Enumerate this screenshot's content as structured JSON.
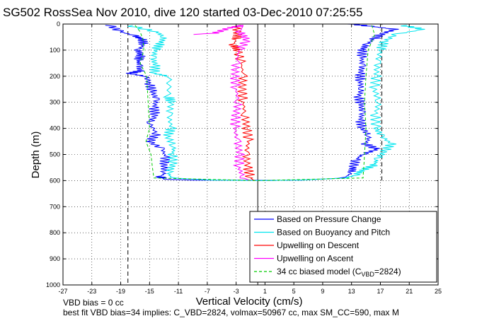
{
  "chart_data": {
    "type": "line",
    "title": "SG502 RossSea Nov 2010, dive 120 started 03-Dec-2010 07:25:55",
    "xlabel": "Vertical Velocity (cm/s)",
    "ylabel": "Depth (m)",
    "xlim": [
      -27,
      25
    ],
    "ylim": [
      1000,
      0
    ],
    "y_reversed": true,
    "grid": true,
    "x_ticks": [
      -27,
      -23,
      -19,
      -15,
      -11,
      -7,
      -3,
      1,
      5,
      9,
      13,
      17,
      21,
      25
    ],
    "y_ticks": [
      0,
      100,
      200,
      300,
      400,
      500,
      600,
      700,
      800,
      900,
      1000
    ],
    "legend_position": "bottom-right",
    "series": [
      {
        "name": "Based on Pressure Change",
        "color": "#0000ff",
        "style": "solid",
        "points": [
          [
            [
              -20.5,
              5
            ],
            [
              -19,
              30
            ],
            [
              -17,
              45
            ],
            [
              -16,
              60
            ],
            [
              -15.8,
              80
            ],
            [
              -16.6,
              100
            ],
            [
              -16.2,
              120
            ],
            [
              -16.6,
              140
            ],
            [
              -16.4,
              160
            ],
            [
              -16.4,
              180
            ],
            [
              -17.8,
              190
            ],
            [
              -15.5,
              200
            ],
            [
              -15.0,
              230
            ],
            [
              -14.6,
              260
            ],
            [
              -14.0,
              290
            ],
            [
              -14.4,
              320
            ],
            [
              -14.2,
              350
            ],
            [
              -15.0,
              380
            ],
            [
              -14.0,
              420
            ],
            [
              -15.0,
              450
            ],
            [
              -13.2,
              480
            ],
            [
              -12.8,
              510
            ],
            [
              -13.0,
              540
            ],
            [
              -12.8,
              570
            ],
            [
              -13.5,
              585
            ],
            [
              -13.0,
              595
            ],
            [
              -9,
              598
            ],
            [
              2,
              599
            ]
          ],
          [
            [
              13,
              0
            ],
            [
              16,
              10
            ],
            [
              19,
              20
            ],
            [
              17,
              40
            ],
            [
              16,
              60
            ],
            [
              15.0,
              80
            ],
            [
              14.5,
              100
            ],
            [
              14.4,
              130
            ],
            [
              14.5,
              160
            ],
            [
              14.2,
              190
            ],
            [
              14.2,
              220
            ],
            [
              14.4,
              250
            ],
            [
              14.0,
              280
            ],
            [
              14.3,
              310
            ],
            [
              14.5,
              340
            ],
            [
              14.2,
              370
            ],
            [
              14.5,
              400
            ],
            [
              15.5,
              430
            ],
            [
              15.0,
              460
            ],
            [
              16.5,
              480
            ],
            [
              14.5,
              500
            ],
            [
              13.6,
              520
            ],
            [
              13.2,
              550
            ],
            [
              13.0,
              570
            ],
            [
              12.0,
              590
            ],
            [
              6,
              598
            ],
            [
              0,
              600
            ]
          ]
        ]
      },
      {
        "name": "Based on Buoyancy and Pitch",
        "color": "#00e5ee",
        "style": "solid",
        "points": [
          [
            [
              -18,
              5
            ],
            [
              -14,
              30
            ],
            [
              -13,
              50
            ],
            [
              -13.5,
              75
            ],
            [
              -14.2,
              100
            ],
            [
              -14.5,
              130
            ],
            [
              -14.2,
              160
            ],
            [
              -14.3,
              190
            ],
            [
              -12.3,
              200
            ],
            [
              -12.3,
              280
            ],
            [
              -12.0,
              300
            ],
            [
              -12.3,
              350
            ],
            [
              -12.0,
              400
            ],
            [
              -12.5,
              430
            ],
            [
              -11.6,
              470
            ],
            [
              -11.8,
              500
            ],
            [
              -11.8,
              540
            ],
            [
              -12.4,
              570
            ],
            [
              -12.0,
              590
            ],
            [
              -6,
              598
            ],
            [
              0,
              600
            ]
          ],
          [
            [
              20,
              5
            ],
            [
              23,
              20
            ],
            [
              19,
              40
            ],
            [
              17.5,
              70
            ],
            [
              17.0,
              100
            ],
            [
              16.6,
              150
            ],
            [
              16.4,
              200
            ],
            [
              16.2,
              250
            ],
            [
              16.8,
              300
            ],
            [
              16.3,
              350
            ],
            [
              16.4,
              400
            ],
            [
              17.2,
              430
            ],
            [
              18.5,
              460
            ],
            [
              17.5,
              490
            ],
            [
              16.5,
              520
            ],
            [
              16.2,
              540
            ],
            [
              14.5,
              560
            ],
            [
              13.5,
              580
            ],
            [
              12,
              590
            ],
            [
              6,
              598
            ],
            [
              0,
              600
            ]
          ]
        ]
      },
      {
        "name": "Upwelling on Descent",
        "color": "#ff0000",
        "style": "solid",
        "points": [
          [
            [
              -3.0,
              5
            ],
            [
              -2.8,
              40
            ],
            [
              -3.0,
              60
            ],
            [
              -3.4,
              80
            ],
            [
              -2.8,
              100
            ],
            [
              -2.3,
              150
            ],
            [
              -2.0,
              200
            ],
            [
              -2.2,
              250
            ],
            [
              -2.0,
              300
            ],
            [
              -1.8,
              350
            ],
            [
              -1.5,
              400
            ],
            [
              -1.3,
              450
            ],
            [
              -1.6,
              500
            ],
            [
              -1.4,
              550
            ],
            [
              -1.0,
              590
            ],
            [
              -0.5,
              600
            ]
          ]
        ]
      },
      {
        "name": "Upwelling on Ascent",
        "color": "#ff00ff",
        "style": "solid",
        "points": [
          [
            [
              -9,
              40
            ],
            [
              -6,
              35
            ],
            [
              -4,
              15
            ],
            [
              -2,
              5
            ],
            [
              -2.5,
              30
            ],
            [
              -1.5,
              60
            ],
            [
              -2.6,
              100
            ],
            [
              -3.0,
              150
            ],
            [
              -3.2,
              200
            ],
            [
              -3.0,
              250
            ],
            [
              -2.7,
              300
            ],
            [
              -3.0,
              350
            ],
            [
              -3.2,
              400
            ],
            [
              -2.8,
              450
            ],
            [
              -2.5,
              500
            ],
            [
              -2.6,
              550
            ],
            [
              -2.0,
              590
            ],
            [
              -1.0,
              600
            ]
          ]
        ]
      },
      {
        "name": "34 cc biased model (C_VBD=2824)",
        "color": "#00cc00",
        "style": "dashed",
        "points": [
          [
            [
              -17.0,
              5
            ],
            [
              -16.3,
              30
            ],
            [
              -15.9,
              60
            ],
            [
              -15.8,
              100
            ],
            [
              -16.3,
              150
            ],
            [
              -15.4,
              200
            ],
            [
              -15.2,
              300
            ],
            [
              -15.0,
              400
            ],
            [
              -15.5,
              450
            ],
            [
              -14.8,
              500
            ],
            [
              -14.6,
              550
            ],
            [
              -14.4,
              590
            ],
            [
              0,
              600
            ]
          ],
          [
            [
              15.8,
              5
            ],
            [
              16.2,
              40
            ],
            [
              15.3,
              100
            ],
            [
              15.0,
              200
            ],
            [
              14.8,
              300
            ],
            [
              15.0,
              400
            ],
            [
              14.8,
              500
            ],
            [
              14.6,
              590
            ],
            [
              0,
              600
            ]
          ]
        ]
      }
    ],
    "reference_lines": [
      {
        "orientation": "vertical",
        "x": -18,
        "y_range": [
          0,
          1000
        ],
        "color": "#000000",
        "style": "dashed"
      },
      {
        "orientation": "vertical",
        "x": 17.2,
        "y_range": [
          600,
          0
        ],
        "color": "#000000",
        "style": "dashed"
      },
      {
        "orientation": "vertical",
        "x": 0,
        "y_range": [
          0,
          1000
        ],
        "color": "#000000",
        "style": "solid"
      }
    ],
    "legend_entries": [
      {
        "label": "Based on Pressure Change",
        "color": "#0000ff",
        "style": "solid"
      },
      {
        "label": "Based on Buoyancy and Pitch",
        "color": "#00e5ee",
        "style": "solid"
      },
      {
        "label": "Upwelling on Descent",
        "color": "#ff0000",
        "style": "solid"
      },
      {
        "label": "Upwelling on Ascent",
        "color": "#ff00ff",
        "style": "solid"
      },
      {
        "label": "34 cc biased model (C",
        "sub": "VBD",
        "tail": "=2824)",
        "color": "#00cc00",
        "style": "dashed"
      }
    ]
  },
  "footnotes": [
    "VBD bias = 0 cc",
    "best fit VBD bias=34 implies: C_VBD=2824, volmax=50967 cc, max SM_CC=590, max M"
  ]
}
